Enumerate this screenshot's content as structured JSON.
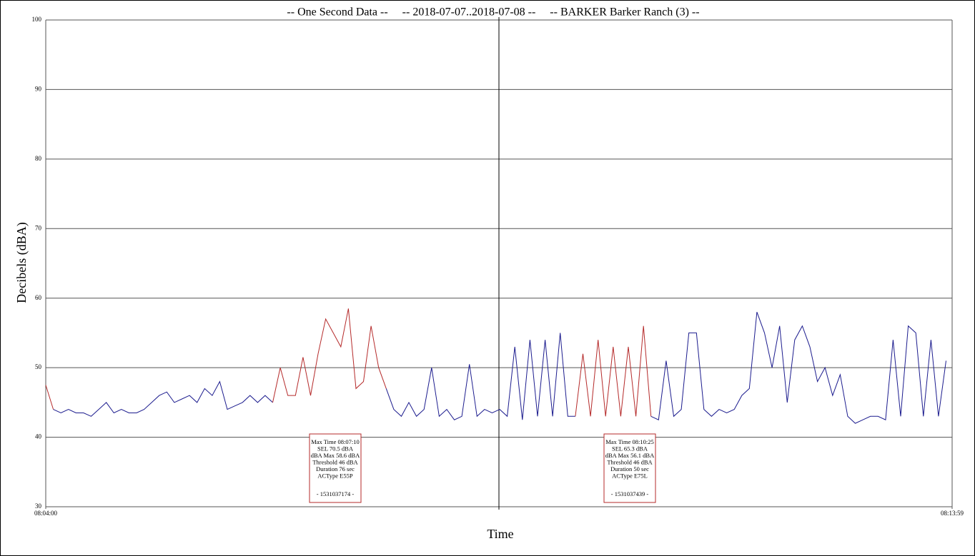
{
  "chart_data": {
    "type": "line",
    "title": "-- One Second Data --     -- 2018-07-07..2018-07-08 --     -- BARKER Barker Ranch (3) --",
    "y_label": "Decibels (dBA)",
    "x_label": "Time",
    "xlim": [
      "08:04:00",
      "08:13:59"
    ],
    "xticks": [
      "08:04:00",
      "08:13:59"
    ],
    "ylim": [
      30,
      100
    ],
    "yticks": [
      30,
      40,
      50,
      60,
      70,
      80,
      90,
      100
    ],
    "grid": true,
    "x": [
      "08:04:00",
      "08:04:05",
      "08:04:10",
      "08:04:15",
      "08:04:20",
      "08:04:25",
      "08:04:30",
      "08:04:35",
      "08:04:40",
      "08:04:45",
      "08:04:50",
      "08:04:55",
      "08:05:00",
      "08:05:05",
      "08:05:10",
      "08:05:15",
      "08:05:20",
      "08:05:25",
      "08:05:30",
      "08:05:35",
      "08:05:40",
      "08:05:45",
      "08:05:50",
      "08:05:55",
      "08:06:00",
      "08:06:05",
      "08:06:10",
      "08:06:15",
      "08:06:20",
      "08:06:25",
      "08:06:30",
      "08:06:35",
      "08:06:40",
      "08:06:45",
      "08:06:50",
      "08:06:55",
      "08:07:00",
      "08:07:05",
      "08:07:10",
      "08:07:15",
      "08:07:20",
      "08:07:25",
      "08:07:30",
      "08:07:35",
      "08:07:40",
      "08:07:45",
      "08:07:50",
      "08:07:55",
      "08:08:00",
      "08:08:05",
      "08:08:10",
      "08:08:15",
      "08:08:20",
      "08:08:25",
      "08:08:30",
      "08:08:35",
      "08:08:40",
      "08:08:45",
      "08:08:50",
      "08:08:55",
      "08:09:00",
      "08:09:05",
      "08:09:10",
      "08:09:15",
      "08:09:20",
      "08:09:25",
      "08:09:30",
      "08:09:35",
      "08:09:40",
      "08:09:45",
      "08:09:50",
      "08:09:55",
      "08:10:00",
      "08:10:05",
      "08:10:10",
      "08:10:15",
      "08:10:20",
      "08:10:25",
      "08:10:30",
      "08:10:35",
      "08:10:40",
      "08:10:45",
      "08:10:50",
      "08:10:55",
      "08:11:00",
      "08:11:05",
      "08:11:10",
      "08:11:15",
      "08:11:20",
      "08:11:25",
      "08:11:30",
      "08:11:35",
      "08:11:40",
      "08:11:45",
      "08:11:50",
      "08:11:55",
      "08:12:00",
      "08:12:05",
      "08:12:10",
      "08:12:15",
      "08:12:20",
      "08:12:25",
      "08:12:30",
      "08:12:35",
      "08:12:40",
      "08:12:45",
      "08:12:50",
      "08:12:55",
      "08:13:00",
      "08:13:05",
      "08:13:10",
      "08:13:15",
      "08:13:20",
      "08:13:25",
      "08:13:30",
      "08:13:35",
      "08:13:40",
      "08:13:45",
      "08:13:50",
      "08:13:55"
    ],
    "series": [
      {
        "color": "#1c1c8e",
        "values": [
          null,
          44,
          43.5,
          44,
          43.5,
          43.5,
          43,
          44,
          45,
          43.5,
          44,
          43.5,
          43.5,
          44,
          45,
          46,
          46.5,
          45,
          45.5,
          46,
          45,
          47,
          46,
          48,
          44,
          44.5,
          45,
          46,
          45,
          46,
          45,
          null,
          null,
          null,
          null,
          null,
          null,
          null,
          null,
          null,
          null,
          null,
          null,
          null,
          null,
          47,
          44,
          43,
          45,
          43,
          44,
          50,
          43,
          44,
          42.5,
          43,
          50.5,
          43,
          44,
          43.5,
          44,
          43,
          53,
          42.5,
          54,
          43,
          54,
          43,
          55,
          43,
          43,
          null,
          null,
          null,
          null,
          null,
          null,
          null,
          null,
          null,
          43,
          42.5,
          51,
          43,
          44,
          55,
          55,
          44,
          43,
          44,
          43.5,
          44,
          46,
          47,
          58,
          55,
          50,
          56,
          45,
          54,
          56,
          53,
          48,
          50,
          46,
          49,
          43,
          42,
          42.5,
          43,
          43,
          42.5,
          54,
          43,
          56,
          55,
          43,
          54,
          43,
          51
        ]
      },
      {
        "color": "#b52a2a",
        "values": [
          47.5,
          44,
          null,
          null,
          null,
          null,
          null,
          null,
          null,
          null,
          null,
          null,
          null,
          null,
          null,
          null,
          null,
          null,
          null,
          null,
          null,
          null,
          null,
          null,
          null,
          null,
          null,
          null,
          null,
          null,
          45,
          50,
          46,
          46,
          51.5,
          46,
          52,
          57,
          55,
          53,
          58.5,
          47,
          48,
          56,
          50,
          47,
          null,
          null,
          null,
          null,
          null,
          null,
          null,
          null,
          null,
          null,
          null,
          null,
          null,
          null,
          null,
          null,
          null,
          null,
          null,
          null,
          null,
          null,
          null,
          null,
          43,
          52,
          43,
          54,
          43,
          53,
          43,
          53,
          43,
          56,
          43,
          null,
          null,
          null,
          null,
          null,
          null,
          null,
          null,
          null,
          null,
          null,
          null,
          null,
          null,
          null,
          null,
          null,
          null,
          null,
          null,
          null,
          null,
          null,
          null,
          null,
          null,
          null,
          null,
          null,
          null,
          null,
          null,
          null,
          null,
          null,
          null,
          null,
          null,
          null
        ]
      }
    ],
    "annotations": [
      {
        "lines": [
          "Max Time 08:07:10",
          "SEL 70.5 dBA",
          "dBA Max 58.6 dBA",
          "Threshold 46 dBA",
          "Duration 76 sec",
          "ACType E55P"
        ],
        "id": "- 1531037174 -"
      },
      {
        "lines": [
          "Max Time 08:10:25",
          "SEL 65.3 dBA",
          "dBA Max 56.1 dBA",
          "Threshold 46 dBA",
          "Duration 50 sec",
          "ACType E75L"
        ],
        "id": "- 1531037439 -"
      }
    ]
  }
}
